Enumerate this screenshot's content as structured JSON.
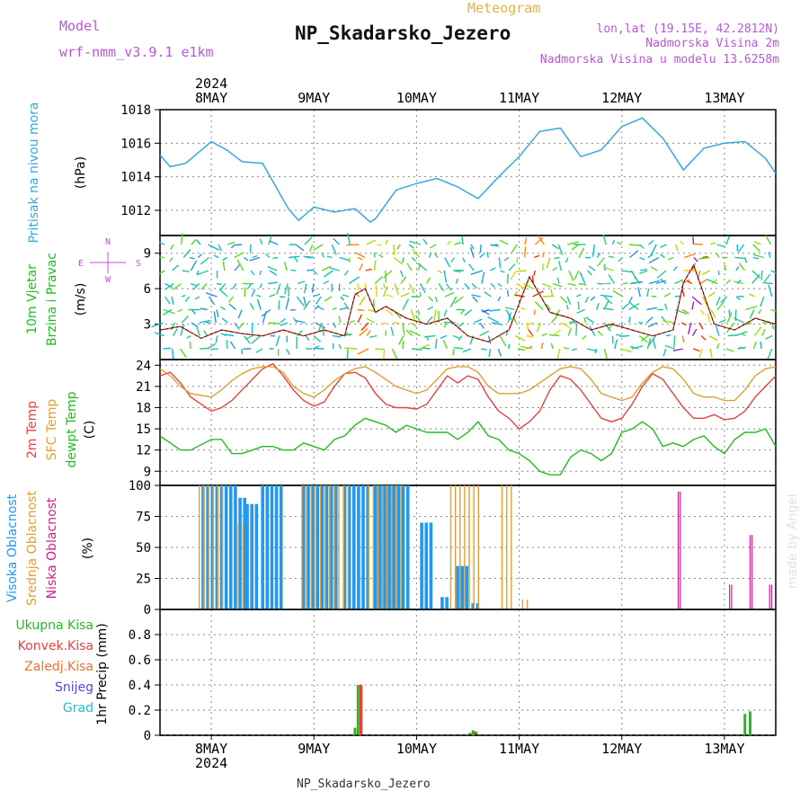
{
  "header": {
    "model_label": "Model",
    "model_name": "wrf-nmm_v3.9.1 e1km",
    "meteogram_label": "Meteogram",
    "station_title": "NP_Skadarsko_Jezero",
    "lonlat": "lon,lat (19.15E, 42.2812N)",
    "altitude": "Nadmorska Visina 2m",
    "model_altitude": "Nadmorska Visina u modelu 13.6258m",
    "footer_station": "NP_Skadarsko_Jezero",
    "watermark": "made by Angel"
  },
  "colors": {
    "pressure": "#33aadd",
    "temp2m": "#e84040",
    "sfc": "#e0a030",
    "dewpt": "#22bb22",
    "high_cloud": "#2299ee",
    "mid_cloud": "#e0a030",
    "low_cloud": "#cc2288",
    "model_text": "#bb55dd",
    "meteogram_text": "#e8b040"
  },
  "chart_data": [
    {
      "type": "line",
      "panel": "pressure",
      "ylabel_lines": [
        "Pritisak na nivou mora",
        "(hPa)"
      ],
      "ylim": [
        1010.5,
        1018
      ],
      "yticks": [
        1012,
        1014,
        1016,
        1018
      ],
      "x_days": [
        7.5,
        7.6,
        7.75,
        8.0,
        8.15,
        8.3,
        8.5,
        8.75,
        8.85,
        9.0,
        9.2,
        9.4,
        9.55,
        9.6,
        9.8,
        10.0,
        10.2,
        10.4,
        10.6,
        10.8,
        11.0,
        11.2,
        11.4,
        11.6,
        11.8,
        12.0,
        12.2,
        12.4,
        12.6,
        12.8,
        13.0,
        13.2,
        13.4,
        13.5
      ],
      "values": [
        1015.3,
        1014.6,
        1014.8,
        1016.1,
        1015.6,
        1014.9,
        1014.8,
        1012.1,
        1011.4,
        1012.2,
        1011.9,
        1012.1,
        1011.3,
        1011.5,
        1013.2,
        1013.6,
        1013.9,
        1013.4,
        1012.7,
        1014.0,
        1015.2,
        1016.7,
        1016.9,
        1015.2,
        1015.6,
        1017.0,
        1017.5,
        1016.3,
        1014.4,
        1015.7,
        1016.0,
        1016.1,
        1015.1,
        1014.2
      ],
      "grid": true
    },
    {
      "type": "line",
      "panel": "wind",
      "ylabel_lines": [
        "10m Vjetar",
        "Brzina i Pravac",
        "(m/s)"
      ],
      "compass": [
        "N",
        "W",
        "E",
        "S"
      ],
      "ylim": [
        0,
        10.5
      ],
      "yticks": [
        3,
        6,
        9
      ],
      "x_days": [
        7.5,
        7.7,
        7.9,
        8.1,
        8.3,
        8.5,
        8.7,
        8.9,
        9.1,
        9.3,
        9.4,
        9.5,
        9.6,
        9.7,
        9.9,
        10.1,
        10.3,
        10.5,
        10.7,
        10.9,
        11.1,
        11.3,
        11.5,
        11.7,
        11.9,
        12.1,
        12.3,
        12.5,
        12.6,
        12.7,
        12.9,
        13.1,
        13.3,
        13.5
      ],
      "values": [
        2.5,
        2.8,
        1.8,
        2.5,
        2.2,
        2.0,
        2.5,
        2.0,
        2.5,
        2.0,
        5.5,
        6.0,
        4.0,
        4.5,
        3.5,
        3.0,
        3.5,
        2.0,
        1.5,
        2.5,
        7.0,
        4.0,
        3.5,
        2.5,
        3.0,
        2.5,
        2.0,
        2.5,
        6.5,
        8.0,
        3.0,
        2.5,
        3.5,
        3.0
      ],
      "grid": true
    },
    {
      "type": "line",
      "panel": "temperature",
      "ylabel_lines": [
        "2m Temp",
        "SFC Temp",
        "dewpt Temp",
        "(C)"
      ],
      "ylim": [
        7,
        24.8
      ],
      "yticks": [
        9,
        12,
        15,
        18,
        21,
        24
      ],
      "x_days": [
        7.5,
        7.6,
        7.7,
        7.8,
        8.0,
        8.1,
        8.2,
        8.3,
        8.4,
        8.5,
        8.6,
        8.7,
        8.8,
        8.9,
        9.0,
        9.1,
        9.2,
        9.3,
        9.4,
        9.5,
        9.6,
        9.7,
        9.8,
        9.9,
        10.0,
        10.1,
        10.2,
        10.3,
        10.4,
        10.5,
        10.6,
        10.7,
        10.8,
        10.9,
        11.0,
        11.1,
        11.2,
        11.3,
        11.4,
        11.5,
        11.6,
        11.7,
        11.8,
        11.9,
        12.0,
        12.1,
        12.2,
        12.3,
        12.4,
        12.5,
        12.6,
        12.7,
        12.8,
        12.9,
        13.0,
        13.1,
        13.2,
        13.3,
        13.4,
        13.5
      ],
      "series": [
        {
          "name": "2m Temp",
          "values": [
            22.5,
            23.0,
            21.5,
            19.5,
            17.5,
            18.0,
            19.0,
            20.5,
            22.0,
            23.5,
            24.2,
            22.5,
            20.5,
            19.0,
            18.2,
            18.8,
            21.0,
            22.8,
            23.0,
            22.2,
            20.0,
            18.5,
            18.0,
            18.0,
            17.8,
            18.5,
            20.5,
            22.5,
            21.5,
            22.5,
            22.0,
            19.5,
            17.5,
            16.5,
            15.0,
            16.0,
            17.5,
            20.5,
            22.5,
            22.0,
            20.5,
            18.5,
            16.5,
            16.0,
            16.5,
            18.5,
            21.0,
            22.8,
            22.0,
            20.0,
            18.0,
            16.5,
            16.5,
            17.0,
            16.3,
            16.5,
            17.5,
            19.5,
            21.0,
            22.5
          ]
        },
        {
          "name": "SFC Temp",
          "values": [
            23.5,
            22.5,
            21.0,
            20.0,
            19.5,
            20.5,
            21.8,
            22.8,
            23.5,
            23.8,
            23.8,
            23.0,
            21.0,
            20.0,
            19.5,
            20.5,
            21.8,
            22.8,
            23.5,
            23.8,
            23.0,
            22.0,
            21.0,
            20.5,
            20.0,
            20.5,
            22.0,
            23.5,
            23.8,
            23.8,
            23.0,
            21.0,
            20.0,
            20.0,
            20.0,
            20.5,
            21.5,
            22.5,
            23.5,
            23.8,
            23.5,
            22.0,
            20.0,
            19.5,
            19.0,
            19.5,
            21.5,
            23.0,
            23.8,
            23.5,
            22.0,
            20.0,
            19.5,
            19.5,
            19.0,
            19.0,
            20.5,
            22.5,
            23.5,
            23.8
          ]
        },
        {
          "name": "dewpt Temp",
          "values": [
            14.0,
            13.0,
            12.0,
            12.0,
            13.5,
            13.5,
            11.5,
            11.5,
            12.0,
            12.5,
            12.5,
            12.0,
            12.0,
            13.0,
            12.5,
            12.0,
            13.5,
            14.0,
            15.5,
            16.5,
            16.0,
            15.5,
            14.5,
            15.5,
            15.0,
            14.5,
            14.5,
            14.5,
            13.5,
            14.5,
            16.0,
            14.0,
            13.5,
            12.0,
            11.5,
            10.5,
            9.0,
            8.5,
            8.5,
            11.0,
            12.0,
            11.5,
            10.5,
            11.5,
            14.5,
            15.0,
            16.0,
            15.0,
            12.5,
            13.0,
            12.5,
            13.5,
            14.0,
            12.5,
            11.5,
            13.5,
            14.5,
            14.5,
            15.0,
            12.5
          ]
        }
      ],
      "grid": true
    },
    {
      "type": "bar",
      "panel": "clouds",
      "ylabel_lines": [
        "Visoka Oblacnost",
        "Srednja Oblacnost",
        "Niska Oblacnost",
        "(%)"
      ],
      "ylim": [
        0,
        100
      ],
      "yticks": [
        0,
        25,
        50,
        75,
        100
      ],
      "series": [
        {
          "name": "Visoka Oblacnost",
          "segments": [
            [
              7.92,
              8.25,
              100
            ],
            [
              8.28,
              8.35,
              90
            ],
            [
              8.35,
              8.45,
              85
            ],
            [
              8.5,
              8.72,
              100
            ],
            [
              8.9,
              9.25,
              100
            ],
            [
              9.3,
              9.55,
              100
            ],
            [
              9.6,
              9.95,
              100
            ],
            [
              10.05,
              10.15,
              70
            ],
            [
              10.25,
              10.3,
              10
            ],
            [
              10.4,
              10.5,
              35
            ],
            [
              10.55,
              10.6,
              5
            ]
          ]
        },
        {
          "name": "Srednja Oblacnost",
          "segments": [
            [
              7.9,
              8.15,
              100
            ],
            [
              8.28,
              8.35,
              70
            ],
            [
              8.9,
              9.35,
              100
            ],
            [
              9.55,
              9.9,
              100
            ],
            [
              10.35,
              10.65,
              100
            ],
            [
              10.85,
              10.95,
              100
            ],
            [
              11.05,
              11.1,
              8
            ]
          ]
        },
        {
          "name": "Niska Oblacnost",
          "segments": [
            [
              12.55,
              12.57,
              95
            ],
            [
              13.05,
              13.07,
              20
            ],
            [
              13.25,
              13.27,
              60
            ],
            [
              13.44,
              13.46,
              20
            ]
          ]
        }
      ],
      "grid": true
    },
    {
      "type": "bar",
      "panel": "precipitation",
      "ylabel_lines": [
        "1hr Precip (mm)"
      ],
      "legend": [
        "Ukupna Kisa",
        "Konvek.Kisa",
        "Zaledj.Kisa",
        "Snijeg",
        "Grad"
      ],
      "ylim": [
        0,
        1.0
      ],
      "yticks": [
        0,
        0.2,
        0.4,
        0.6,
        0.8
      ],
      "series": [
        {
          "name": "Ukupna Kisa",
          "x": [
            9.4,
            9.43,
            9.46,
            10.52,
            10.55,
            10.58,
            13.2,
            13.25
          ],
          "values": [
            0.06,
            0.4,
            0.4,
            0.02,
            0.04,
            0.03,
            0.17,
            0.19
          ]
        },
        {
          "name": "Konvek.Kisa",
          "x": [
            9.44,
            10.55
          ],
          "values": [
            0.4,
            0.03
          ]
        }
      ],
      "grid": true
    }
  ],
  "xaxis": {
    "year_label": "2024",
    "day_labels": [
      "8MAY",
      "9MAY",
      "10MAY",
      "11MAY",
      "12MAY",
      "13MAY"
    ],
    "day_values": [
      8,
      9,
      10,
      11,
      12,
      13
    ],
    "xlim": [
      7.5,
      13.5
    ]
  }
}
